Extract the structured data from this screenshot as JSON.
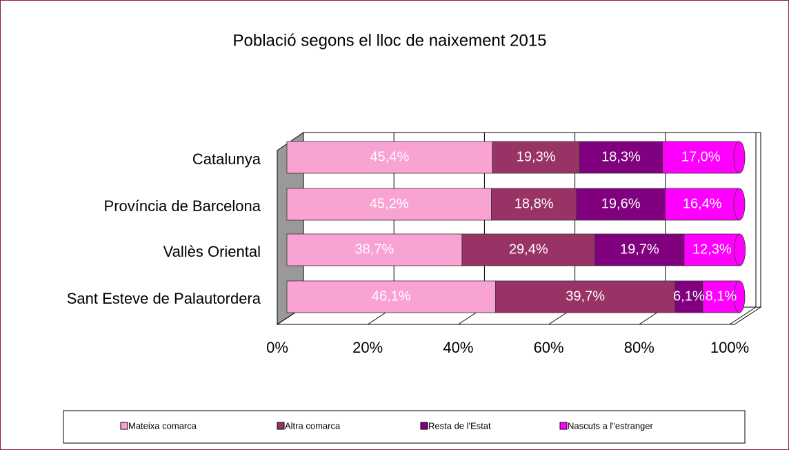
{
  "chart_data": {
    "type": "stacked-bar-horizontal",
    "title": "Població segons el lloc de naixement 2015",
    "categories": [
      "Catalunya",
      "Província de Barcelona",
      "Vallès Oriental",
      "Sant Esteve de Palautordera"
    ],
    "series": [
      {
        "name": "Mateixa comarca",
        "color": "#f9a3d3",
        "values": [
          45.4,
          45.2,
          38.7,
          46.1
        ],
        "value_labels": [
          "45,4%",
          "45,2%",
          "38,7%",
          "46,1%"
        ]
      },
      {
        "name": "Altra comarca",
        "color": "#993366",
        "values": [
          19.3,
          18.8,
          29.4,
          39.7
        ],
        "value_labels": [
          "19,3%",
          "18,8%",
          "29,4%",
          "39,7%"
        ]
      },
      {
        "name": "Resta de l'Estat",
        "color": "#800080",
        "values": [
          18.3,
          19.6,
          19.7,
          6.1
        ],
        "value_labels": [
          "18,3%",
          "19,6%",
          "19,7%",
          "6,1%"
        ]
      },
      {
        "name": "Nascuts a l\"estranger",
        "color": "#ff00ff",
        "values": [
          17.0,
          16.4,
          12.3,
          8.1
        ],
        "value_labels": [
          "17,0%",
          "16,4%",
          "12,3%",
          "8,1%"
        ]
      }
    ],
    "xlim": [
      0,
      100
    ],
    "xticks": [
      {
        "value": 0,
        "label": "0%"
      },
      {
        "value": 20,
        "label": "20%"
      },
      {
        "value": 40,
        "label": "40%"
      },
      {
        "value": 60,
        "label": "60%"
      },
      {
        "value": 80,
        "label": "80%"
      },
      {
        "value": 100,
        "label": "100%"
      }
    ],
    "grid": true,
    "legend": "bottom"
  }
}
